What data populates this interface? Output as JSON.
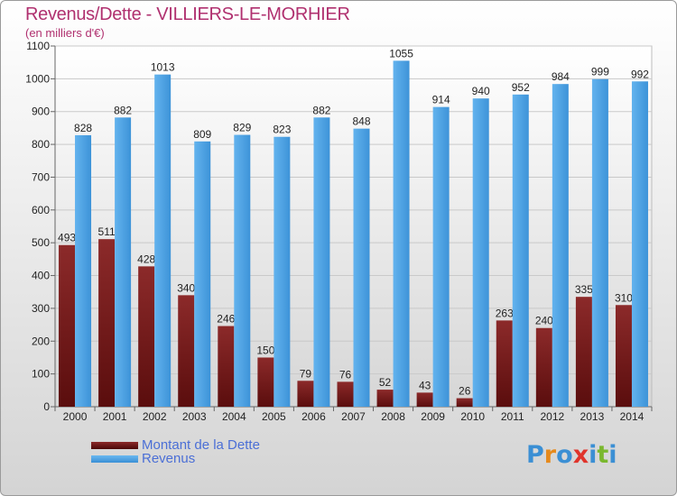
{
  "chart_data": {
    "type": "bar",
    "title": "Revenus/Dette - VILLIERS-LE-MORHIER",
    "subtitle": "(en milliers d'€)",
    "categories": [
      "2000",
      "2001",
      "2002",
      "2003",
      "2004",
      "2005",
      "2006",
      "2007",
      "2008",
      "2009",
      "2010",
      "2011",
      "2012",
      "2013",
      "2014"
    ],
    "series": [
      {
        "name": "Montant de la Dette",
        "color": "#7a1e1e",
        "values": [
          493,
          511,
          428,
          340,
          246,
          150,
          79,
          76,
          52,
          43,
          26,
          263,
          240,
          335,
          310
        ]
      },
      {
        "name": "Revenus",
        "color": "#4a9fe0",
        "values": [
          828,
          882,
          1013,
          809,
          829,
          823,
          882,
          848,
          1055,
          914,
          940,
          952,
          984,
          999,
          992
        ]
      }
    ],
    "ylim": [
      0,
      1100
    ],
    "yticks": [
      0,
      100,
      200,
      300,
      400,
      500,
      600,
      700,
      800,
      900,
      1000,
      1100
    ],
    "grid": true,
    "legend_position": "bottom-left"
  },
  "logo": {
    "letters": [
      "P",
      "r",
      "o",
      "x",
      "i",
      "t",
      "i"
    ],
    "colors": [
      "#3b8fd4",
      "#e68a1c",
      "#3b8fd4",
      "#e0342b",
      "#3b8fd4",
      "#7ab82e",
      "#3b8fd4"
    ]
  }
}
